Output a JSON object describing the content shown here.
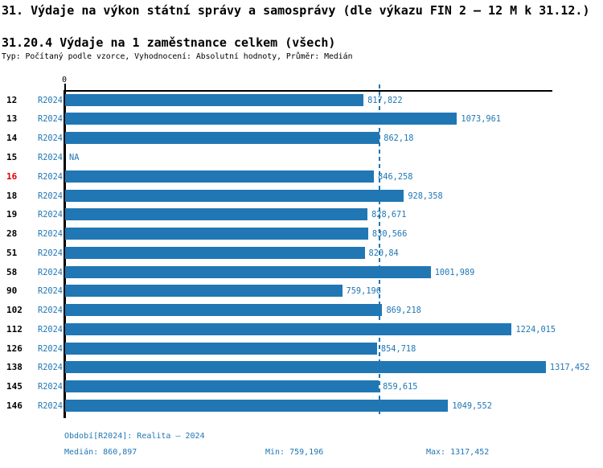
{
  "header": {
    "title": "31. Výdaje na výkon státní správy a samosprávy (dle výkazu FIN 2 – 12 M k 31.12.)",
    "subtitle": "31.20.4 Výdaje na 1 zaměstnance celkem (všech)",
    "meta_line": "Typ: Počítaný podle vzorce, Vyhodnocení: Absolutní hodnoty, Průměr: Medián"
  },
  "colors": {
    "bar_blue": "#2077b4",
    "text_blue": "#2077b4",
    "highlight_red": "#dd0000",
    "axis_black": "#000000"
  },
  "chart_data": {
    "type": "bar",
    "orientation": "horizontal",
    "title": "31.20.4 Výdaje na 1 zaměstnance celkem (všech)",
    "xlabel": "",
    "ylabel": "",
    "x_tick_labels": [
      "0"
    ],
    "xlim": [
      0,
      1335.4
    ],
    "grid": false,
    "legend_position": "none",
    "series_name": "R2024",
    "median_value": 860.897,
    "median_line": true,
    "categories": [
      "12",
      "13",
      "14",
      "15",
      "16",
      "18",
      "19",
      "28",
      "51",
      "58",
      "90",
      "102",
      "112",
      "126",
      "138",
      "145",
      "146"
    ],
    "rows": [
      {
        "id": "12",
        "period": "R2024",
        "value": 817.822,
        "value_label": "817,822",
        "highlight": false
      },
      {
        "id": "13",
        "period": "R2024",
        "value": 1073.961,
        "value_label": "1073,961",
        "highlight": false
      },
      {
        "id": "14",
        "period": "R2024",
        "value": 862.18,
        "value_label": "862,18",
        "highlight": false
      },
      {
        "id": "15",
        "period": "R2024",
        "value": null,
        "value_label": "NA",
        "highlight": false
      },
      {
        "id": "16",
        "period": "R2024",
        "value": 846.258,
        "value_label": "846,258",
        "highlight": true
      },
      {
        "id": "18",
        "period": "R2024",
        "value": 928.358,
        "value_label": "928,358",
        "highlight": false
      },
      {
        "id": "19",
        "period": "R2024",
        "value": 828.671,
        "value_label": "828,671",
        "highlight": false
      },
      {
        "id": "28",
        "period": "R2024",
        "value": 830.566,
        "value_label": "830,566",
        "highlight": false
      },
      {
        "id": "51",
        "period": "R2024",
        "value": 820.84,
        "value_label": "820,84",
        "highlight": false
      },
      {
        "id": "58",
        "period": "R2024",
        "value": 1001.989,
        "value_label": "1001,989",
        "highlight": false
      },
      {
        "id": "90",
        "period": "R2024",
        "value": 759.196,
        "value_label": "759,196",
        "highlight": false
      },
      {
        "id": "102",
        "period": "R2024",
        "value": 869.218,
        "value_label": "869,218",
        "highlight": false
      },
      {
        "id": "112",
        "period": "R2024",
        "value": 1224.015,
        "value_label": "1224,015",
        "highlight": false
      },
      {
        "id": "126",
        "period": "R2024",
        "value": 854.718,
        "value_label": "854,718",
        "highlight": false
      },
      {
        "id": "138",
        "period": "R2024",
        "value": 1317.452,
        "value_label": "1317,452",
        "highlight": false
      },
      {
        "id": "145",
        "period": "R2024",
        "value": 859.615,
        "value_label": "859,615",
        "highlight": false
      },
      {
        "id": "146",
        "period": "R2024",
        "value": 1049.552,
        "value_label": "1049,552",
        "highlight": false
      }
    ]
  },
  "footer": {
    "period_line": "Období[R2024]: Realita – 2024",
    "median_label": "Medián: 860,897",
    "min_label": "Min: 759,196",
    "max_label": "Max: 1317,452"
  }
}
